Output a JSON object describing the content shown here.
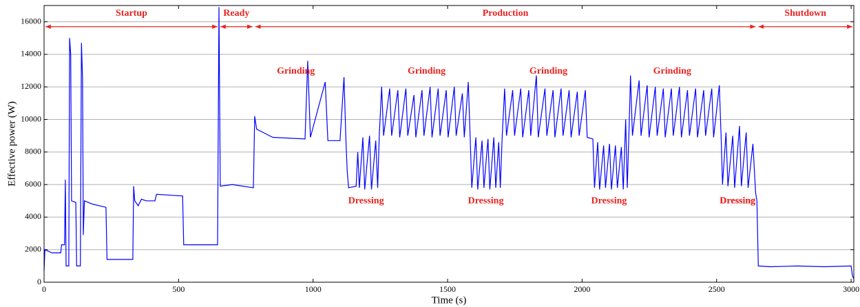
{
  "chart_data": {
    "type": "line",
    "xlabel": "Time (s)",
    "ylabel": "Effective power (W)",
    "xlim": [
      0,
      3010
    ],
    "ylim": [
      0,
      17000
    ],
    "xticks": [
      0,
      500,
      1000,
      1500,
      2000,
      2500,
      3000
    ],
    "yticks": [
      0,
      2000,
      4000,
      6000,
      8000,
      10000,
      12000,
      14000,
      16000
    ],
    "grid": true,
    "annotation_color": "#e8231f",
    "phases": [
      "Startup",
      "Ready",
      "Production",
      "Shutdown"
    ],
    "activity_labels": [
      "Grinding",
      "Grinding",
      "Grinding",
      "Grinding",
      "Dressing",
      "Dressing",
      "Dressing",
      "Dressing",
      "Dressing"
    ],
    "series": [
      {
        "color": "#0000ff",
        "x": [
          0,
          3,
          30,
          62,
          65,
          76,
          79,
          82,
          92,
          95,
          99,
          102,
          118,
          121,
          135,
          139,
          143,
          146,
          150,
          180,
          230,
          234,
          330,
          333,
          337,
          350,
          362,
          380,
          412,
          418,
          515,
          519,
          645,
          650,
          655,
          700,
          778,
          783,
          790,
          850,
          970,
          980,
          990,
          1045,
          1055,
          1100,
          1115,
          1122,
          1127,
          1132,
          1160,
          1166,
          1172,
          1185,
          1192,
          1210,
          1217,
          1233,
          1240,
          1246,
          1255,
          1262,
          1285,
          1292,
          1315,
          1322,
          1345,
          1352,
          1375,
          1382,
          1405,
          1412,
          1435,
          1442,
          1465,
          1472,
          1495,
          1502,
          1525,
          1532,
          1555,
          1562,
          1577,
          1584,
          1590,
          1605,
          1612,
          1628,
          1635,
          1650,
          1657,
          1672,
          1679,
          1690,
          1696,
          1703,
          1712,
          1719,
          1742,
          1749,
          1772,
          1779,
          1802,
          1809,
          1830,
          1837,
          1862,
          1869,
          1892,
          1899,
          1922,
          1929,
          1952,
          1959,
          1982,
          1989,
          2012,
          2019,
          2040,
          2046,
          2058,
          2065,
          2080,
          2087,
          2102,
          2109,
          2124,
          2131,
          2146,
          2153,
          2162,
          2168,
          2175,
          2180,
          2187,
          2212,
          2219,
          2242,
          2249,
          2272,
          2279,
          2302,
          2309,
          2332,
          2339,
          2362,
          2369,
          2392,
          2399,
          2422,
          2429,
          2452,
          2459,
          2482,
          2489,
          2510,
          2517,
          2522,
          2535,
          2542,
          2560,
          2567,
          2585,
          2592,
          2610,
          2617,
          2635,
          2645,
          2650,
          2655,
          2700,
          2800,
          2900,
          3000,
          3005,
          3010
        ],
        "values": [
          700,
          2000,
          1800,
          1800,
          2300,
          2300,
          6300,
          1000,
          1000,
          15000,
          14000,
          5000,
          4900,
          1000,
          1000,
          14700,
          12500,
          2900,
          5000,
          4800,
          4600,
          1400,
          1400,
          5900,
          5000,
          4700,
          5100,
          5000,
          5000,
          5400,
          5300,
          2300,
          2300,
          16900,
          5900,
          6000,
          5800,
          10200,
          9400,
          8900,
          8800,
          13600,
          8900,
          12300,
          8700,
          8700,
          12600,
          8700,
          6800,
          5800,
          5900,
          8000,
          5800,
          8900,
          5700,
          9000,
          5700,
          8700,
          5800,
          9000,
          12000,
          9000,
          11900,
          9000,
          11800,
          8900,
          11900,
          9000,
          11500,
          8900,
          11800,
          9000,
          12000,
          8900,
          11900,
          9000,
          11800,
          8900,
          12000,
          9000,
          11600,
          8900,
          12300,
          8800,
          5800,
          8900,
          5700,
          8700,
          5800,
          8800,
          5700,
          8900,
          5800,
          8600,
          5800,
          9000,
          11900,
          9000,
          11800,
          9000,
          11900,
          8900,
          11800,
          9000,
          12700,
          8900,
          11900,
          9000,
          11800,
          8900,
          11900,
          9000,
          11800,
          8900,
          11700,
          9000,
          11800,
          8900,
          8800,
          5800,
          8600,
          5700,
          8400,
          5800,
          8500,
          5700,
          8400,
          5800,
          8300,
          5700,
          10000,
          5800,
          9700,
          12700,
          9000,
          12400,
          9000,
          12100,
          8900,
          12000,
          9000,
          11900,
          8900,
          11900,
          9000,
          12000,
          8900,
          11800,
          9000,
          11900,
          8900,
          11800,
          9000,
          11900,
          8900,
          12100,
          8800,
          6000,
          9200,
          5900,
          9000,
          5800,
          9600,
          5900,
          9200,
          5800,
          8500,
          5500,
          5000,
          1000,
          950,
          1000,
          950,
          1000,
          400,
          200
        ]
      }
    ]
  }
}
